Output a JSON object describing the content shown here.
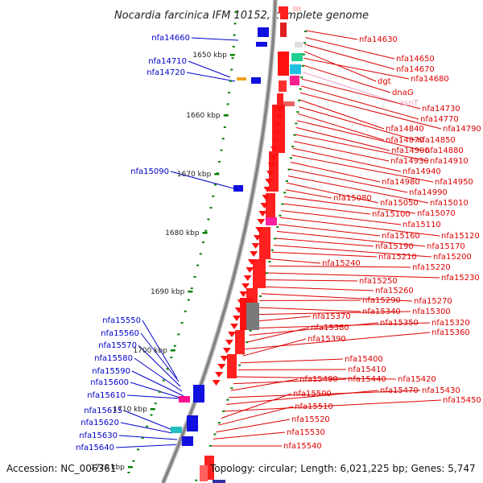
{
  "title": "Nocardia farcinica IFM 10152, complete genome",
  "footer": {
    "accession": "Accession: NC_006361",
    "summary": "Topology: circular; Length: 6,021,225 bp; Genes: 5,747"
  },
  "colors": {
    "backbone": "#808080",
    "forward_label": "#0000c8",
    "reverse_label": "#dd0000",
    "tick": "#008000",
    "rna_label": "#e8a0c8"
  },
  "ruler": [
    {
      "label": "1650 kbp"
    },
    {
      "label": "1660 kbp"
    },
    {
      "label": "1670 kbp"
    },
    {
      "label": "1680 kbp"
    },
    {
      "label": "1690 kbp"
    },
    {
      "label": "1700 kbp"
    },
    {
      "label": "1710 kbp"
    },
    {
      "label": "1720 kbp"
    }
  ],
  "forward_genes": [
    {
      "name": "nfa14660"
    },
    {
      "name": "nfa14710"
    },
    {
      "name": "nfa14720"
    },
    {
      "name": "nfa15090"
    },
    {
      "name": "nfa15550"
    },
    {
      "name": "nfa15560"
    },
    {
      "name": "nfa15570"
    },
    {
      "name": "nfa15580"
    },
    {
      "name": "nfa15590"
    },
    {
      "name": "nfa15600"
    },
    {
      "name": "nfa15610"
    },
    {
      "name": "nfa15615"
    },
    {
      "name": "nfa15620"
    },
    {
      "name": "nfa15630"
    },
    {
      "name": "nfa15640"
    }
  ],
  "reverse_genes": [
    {
      "name": "nfa14630"
    },
    {
      "name": "nfa14650"
    },
    {
      "name": "nfa14670"
    },
    {
      "name": "dgt"
    },
    {
      "name": "nfa14680"
    },
    {
      "name": "dnaG"
    },
    {
      "name": "asnT",
      "rna": true
    },
    {
      "name": "nfa14730"
    },
    {
      "name": "nfa14770"
    },
    {
      "name": "nfa14790"
    },
    {
      "name": "nfa14840"
    },
    {
      "name": "nfa14850"
    },
    {
      "name": "nfa14870"
    },
    {
      "name": "nfa14880"
    },
    {
      "name": "nfa14900"
    },
    {
      "name": "nfa14910"
    },
    {
      "name": "nfa14930"
    },
    {
      "name": "nfa14940"
    },
    {
      "name": "nfa14950"
    },
    {
      "name": "nfa14980"
    },
    {
      "name": "nfa14990"
    },
    {
      "name": "nfa15010"
    },
    {
      "name": "nfa15050"
    },
    {
      "name": "nfa15080"
    },
    {
      "name": "nfa15070"
    },
    {
      "name": "nfa15100"
    },
    {
      "name": "nfa15110"
    },
    {
      "name": "nfa15120"
    },
    {
      "name": "nfa15160"
    },
    {
      "name": "nfa15170"
    },
    {
      "name": "nfa15190"
    },
    {
      "name": "nfa15200"
    },
    {
      "name": "nfa15210"
    },
    {
      "name": "nfa15240"
    },
    {
      "name": "nfa15220"
    },
    {
      "name": "nfa15230"
    },
    {
      "name": "nfa15250"
    },
    {
      "name": "nfa15260"
    },
    {
      "name": "nfa15270"
    },
    {
      "name": "nfa15290"
    },
    {
      "name": "nfa15340"
    },
    {
      "name": "nfa15300"
    },
    {
      "name": "nfa15370"
    },
    {
      "name": "nfa15320"
    },
    {
      "name": "nfa15350"
    },
    {
      "name": "nfa15380"
    },
    {
      "name": "nfa15360"
    },
    {
      "name": "nfa15390"
    },
    {
      "name": "nfa15400"
    },
    {
      "name": "nfa15410"
    },
    {
      "name": "nfa15420"
    },
    {
      "name": "nfa15440"
    },
    {
      "name": "nfa15490"
    },
    {
      "name": "nfa15430"
    },
    {
      "name": "nfa15470"
    },
    {
      "name": "nfa15450"
    },
    {
      "name": "nfa15500"
    },
    {
      "name": "nfa15510"
    },
    {
      "name": "nfa15520"
    },
    {
      "name": "nfa15530"
    },
    {
      "name": "nfa15540"
    }
  ]
}
